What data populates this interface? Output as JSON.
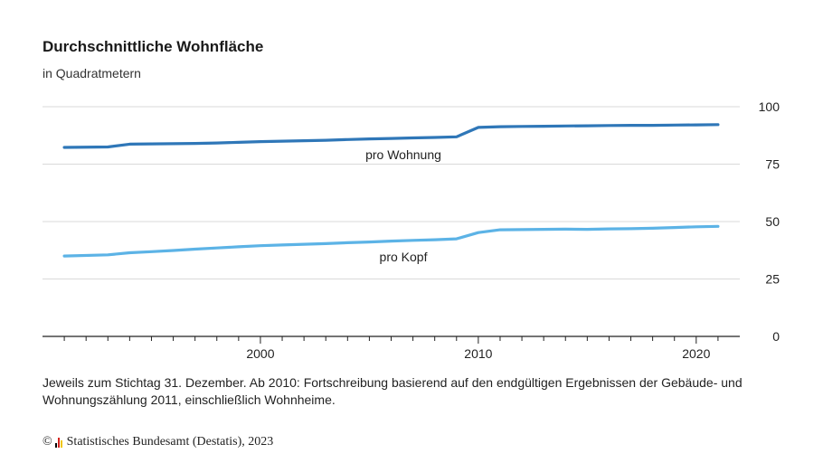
{
  "chart_data": {
    "type": "line",
    "title": "Durchschnittliche Wohnfläche",
    "subtitle": "in Quadratmetern",
    "x": [
      1991,
      1993,
      1994,
      1995,
      1996,
      1997,
      1998,
      1999,
      2000,
      2001,
      2002,
      2003,
      2004,
      2005,
      2006,
      2007,
      2008,
      2009,
      2010,
      2011,
      2012,
      2013,
      2014,
      2015,
      2016,
      2017,
      2018,
      2019,
      2020,
      2021
    ],
    "series": [
      {
        "name": "pro Wohnung",
        "color": "#2f77b8",
        "values": [
          82.3,
          82.5,
          83.7,
          83.8,
          83.9,
          84.0,
          84.2,
          84.5,
          84.8,
          85.0,
          85.2,
          85.4,
          85.7,
          86.0,
          86.2,
          86.4,
          86.6,
          86.9,
          91.0,
          91.3,
          91.4,
          91.5,
          91.6,
          91.7,
          91.8,
          91.9,
          91.9,
          92.0,
          92.1,
          92.2
        ]
      },
      {
        "name": "pro Kopf",
        "color": "#5cb3e6",
        "values": [
          35.0,
          35.5,
          36.4,
          36.9,
          37.4,
          38.0,
          38.5,
          39.0,
          39.5,
          39.8,
          40.1,
          40.4,
          40.8,
          41.1,
          41.5,
          41.8,
          42.1,
          42.5,
          45.2,
          46.4,
          46.5,
          46.6,
          46.7,
          46.6,
          46.8,
          46.9,
          47.1,
          47.4,
          47.7,
          47.9
        ]
      }
    ],
    "xlim": [
      1990,
      2022
    ],
    "ylim": [
      0,
      100
    ],
    "xticks": [
      2000,
      2010,
      2020
    ],
    "yticks": [
      0,
      25,
      50,
      75,
      100
    ],
    "grid": true,
    "y_axis_position": "right",
    "legend": "inline labels"
  },
  "note": "Jeweils zum Stichtag 31. Dezember. Ab 2010: Fortschreibung basierend auf den endgültigen Ergebnissen der Gebäude- und Wohnungszählung 2011, einschließlich Wohnheime.",
  "footer": {
    "copyright": "©",
    "source": "Statistisches Bundesamt (Destatis), 2023",
    "logo_colors": [
      "#000000",
      "#d4231d",
      "#f1c400"
    ]
  }
}
